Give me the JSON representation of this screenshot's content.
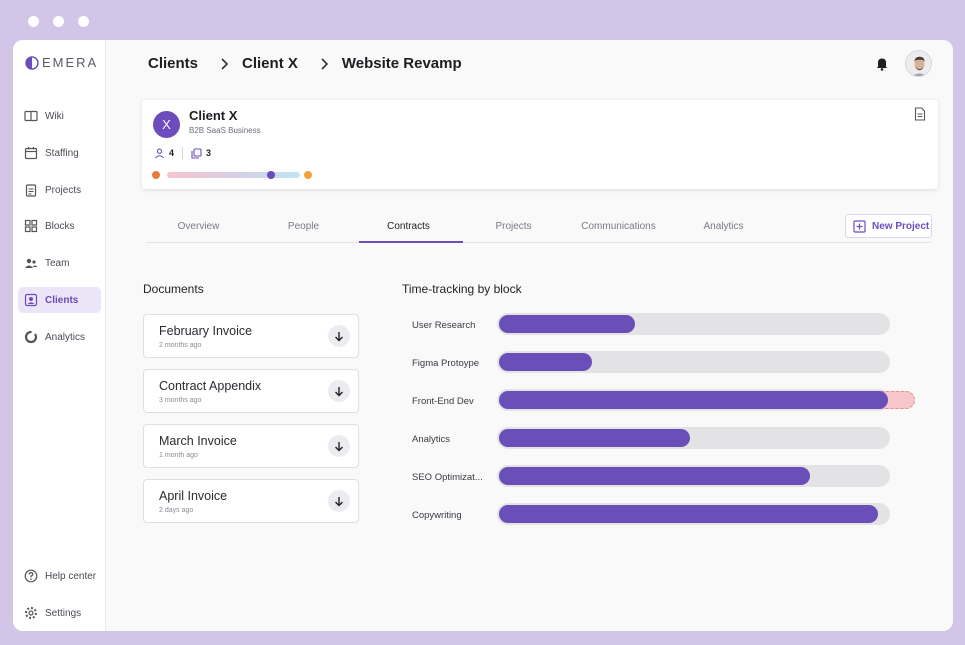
{
  "app": {
    "logo_text": "EMERA"
  },
  "sidebar": {
    "items": [
      {
        "label": "Wiki",
        "icon": "wiki-icon",
        "active": false
      },
      {
        "label": "Staffing",
        "icon": "calendar-icon",
        "active": false
      },
      {
        "label": "Projects",
        "icon": "clipboard-icon",
        "active": false
      },
      {
        "label": "Blocks",
        "icon": "blocks-icon",
        "active": false
      },
      {
        "label": "Team",
        "icon": "team-icon",
        "active": false
      },
      {
        "label": "Clients",
        "icon": "clients-icon",
        "active": true
      },
      {
        "label": "Analytics",
        "icon": "donut-icon",
        "active": false
      }
    ],
    "bottom": [
      {
        "label": "Help center",
        "icon": "help-icon"
      },
      {
        "label": "Settings",
        "icon": "gear-icon"
      }
    ]
  },
  "breadcrumb": [
    "Clients",
    "Client X",
    "Website Revamp"
  ],
  "client": {
    "initial": "X",
    "name": "Client X",
    "subtitle": "B2B SaaS Business",
    "people_count": "4",
    "projects_count": "3",
    "sentiment": 0.78
  },
  "tabs": [
    "Overview",
    "People",
    "Contracts",
    "Projects",
    "Communications",
    "Analytics"
  ],
  "active_tab": 2,
  "new_project_label": "New Project",
  "documents": {
    "title": "Documents",
    "items": [
      {
        "name": "February Invoice",
        "time": "2 months ago"
      },
      {
        "name": "Contract Appendix",
        "time": "3 months ago"
      },
      {
        "name": "March Invoice",
        "time": "1 month ago"
      },
      {
        "name": "April Invoice",
        "time": "2 days ago"
      }
    ]
  },
  "time_tracking": {
    "title": "Time-tracking by block",
    "blocks": [
      {
        "label": "User Research",
        "fraction": 0.35,
        "over": 0
      },
      {
        "label": "Figma Protoype",
        "fraction": 0.24,
        "over": 0
      },
      {
        "label": "Front-End Dev",
        "fraction": 1.0,
        "over": 0.07
      },
      {
        "label": "Analytics",
        "fraction": 0.49,
        "over": 0
      },
      {
        "label": "SEO Optimizat...",
        "fraction": 0.8,
        "over": 0
      },
      {
        "label": "Copywriting",
        "fraction": 0.975,
        "over": 0
      }
    ]
  },
  "colors": {
    "accent": "#6c4dbb",
    "accent_light": "#ece5f8",
    "frame": "#d2c5e8",
    "over": "#f7c6cb"
  }
}
